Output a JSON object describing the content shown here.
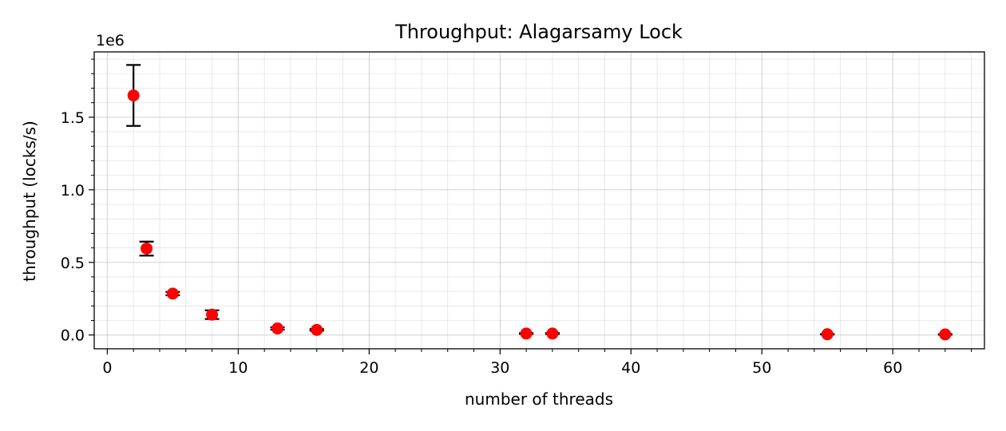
{
  "chart_data": {
    "type": "scatter",
    "title": "Throughput: Alagarsamy Lock",
    "xlabel": "number of threads",
    "ylabel": "throughput (locks/s)",
    "y_offset_label": "1e6",
    "xlim": [
      -1,
      67
    ],
    "ylim": [
      -95000,
      1950000
    ],
    "x_ticks": [
      0,
      10,
      20,
      30,
      40,
      50,
      60
    ],
    "x_tick_labels": [
      "0",
      "10",
      "20",
      "30",
      "40",
      "50",
      "60"
    ],
    "y_ticks": [
      0,
      500000,
      1000000,
      1500000
    ],
    "y_tick_labels": [
      "0.0",
      "0.5",
      "1.0",
      "1.5"
    ],
    "grid": true,
    "minor_grid": true,
    "marker_color": "#ff0000",
    "errorbar_color": "#000000",
    "points": [
      {
        "x": 2,
        "y": 1650000,
        "err": 210000
      },
      {
        "x": 3,
        "y": 595000,
        "err": 48000
      },
      {
        "x": 5,
        "y": 285000,
        "err": 12000
      },
      {
        "x": 8,
        "y": 140000,
        "err": 30000
      },
      {
        "x": 13,
        "y": 45000,
        "err": 8000
      },
      {
        "x": 16,
        "y": 35000,
        "err": 6000
      },
      {
        "x": 32,
        "y": 10000,
        "err": 3000
      },
      {
        "x": 34,
        "y": 10000,
        "err": 3000
      },
      {
        "x": 55,
        "y": 5000,
        "err": 2000
      },
      {
        "x": 64,
        "y": 4000,
        "err": 2000
      }
    ]
  }
}
